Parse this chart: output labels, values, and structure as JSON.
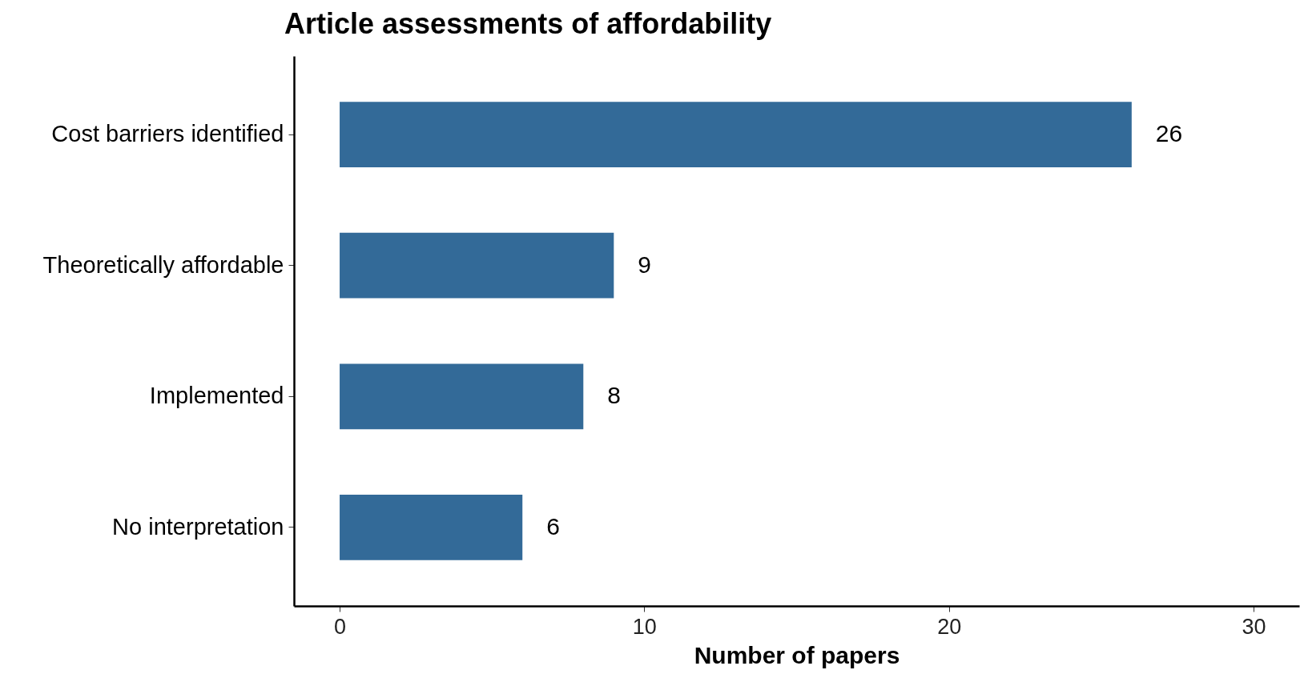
{
  "chart_data": {
    "type": "bar",
    "orientation": "horizontal",
    "title": "Article assessments of affordability",
    "xlabel": "Number of papers",
    "categories": [
      "Cost barriers identified",
      "Theoretically affordable",
      "Implemented",
      "No interpretation"
    ],
    "values": [
      26,
      9,
      8,
      6
    ],
    "color": "#336a98",
    "xlim": [
      -1.5,
      31.5
    ],
    "xticks": [
      0,
      10,
      20,
      30
    ],
    "data_labels": true,
    "grid": false
  }
}
